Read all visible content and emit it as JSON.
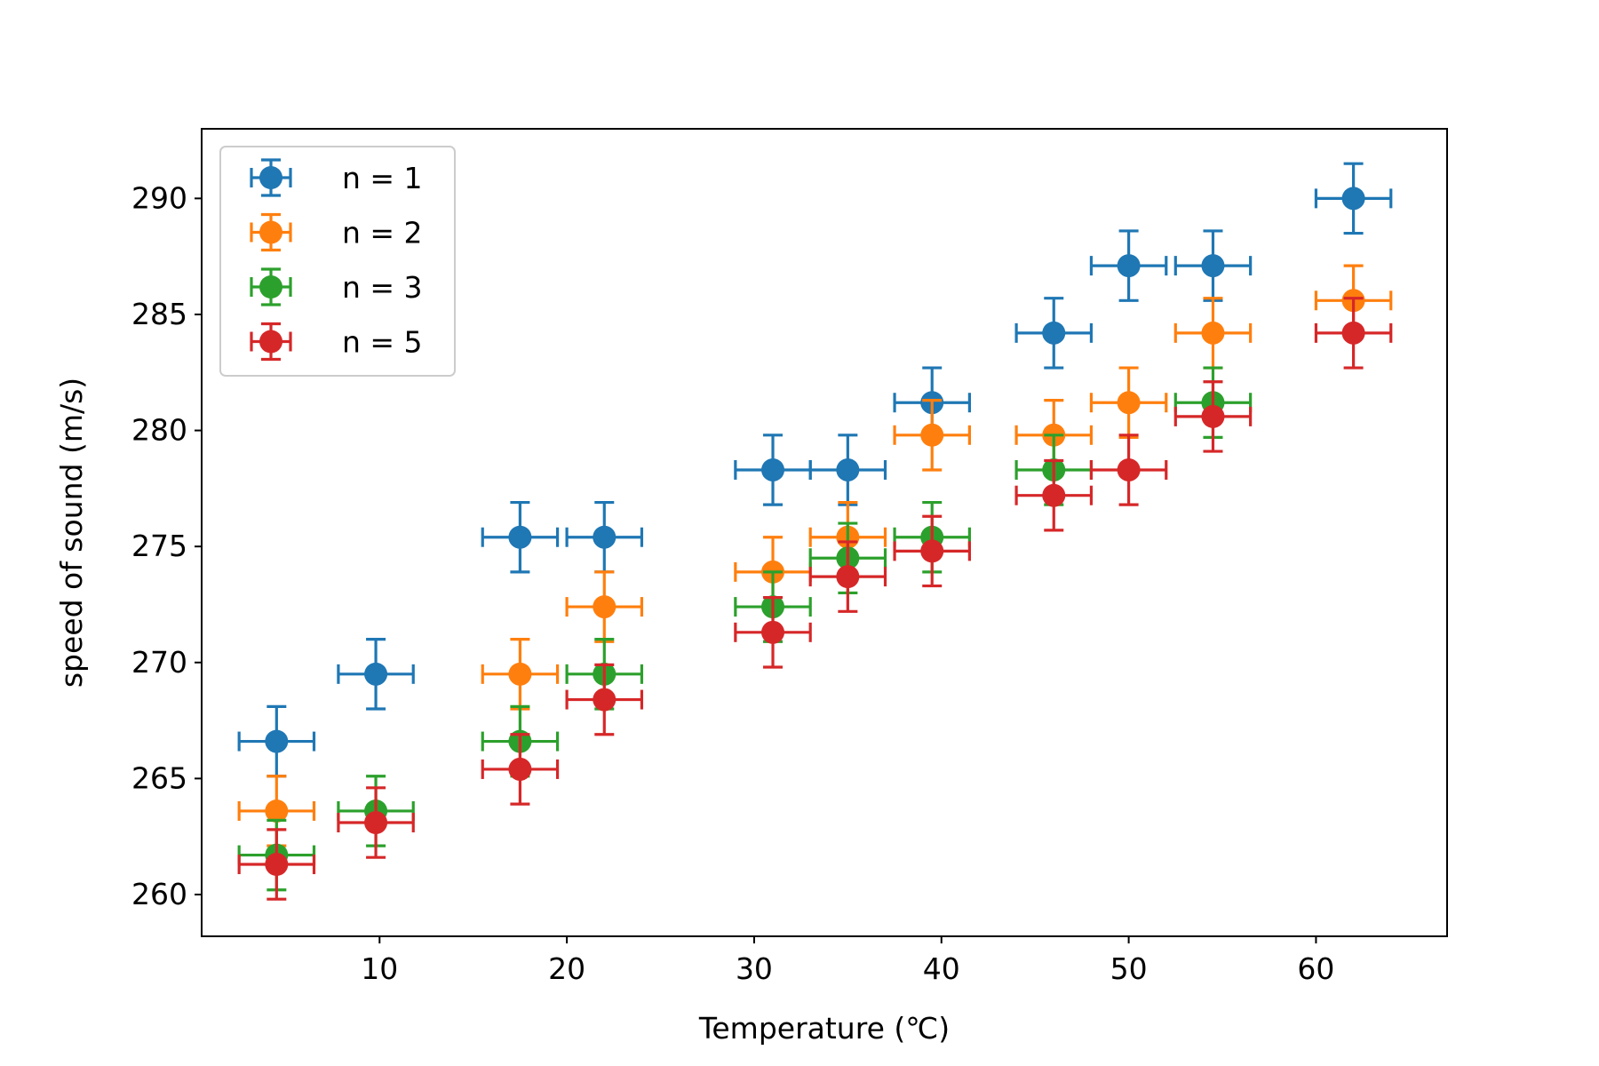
{
  "chart_data": {
    "type": "scatter",
    "title": "",
    "xlabel": "Temperature (℃)",
    "ylabel": "speed of sound (m/s)",
    "xlim": [
      0.5,
      67
    ],
    "ylim": [
      258.2,
      293.0
    ],
    "xticks": [
      10,
      20,
      30,
      40,
      50,
      60
    ],
    "yticks": [
      260,
      265,
      270,
      275,
      280,
      285,
      290
    ],
    "grid": false,
    "legend_position": "upper-left",
    "x_error": 2,
    "y_error": 1.5,
    "series": [
      {
        "name": "n = 1",
        "color": "#1f77b4",
        "points": [
          [
            4.5,
            266.6
          ],
          [
            9.8,
            269.5
          ],
          [
            17.5,
            275.4
          ],
          [
            22,
            275.4
          ],
          [
            31,
            278.3
          ],
          [
            35,
            278.3
          ],
          [
            39.5,
            281.2
          ],
          [
            46,
            284.2
          ],
          [
            50,
            287.1
          ],
          [
            54.5,
            287.1
          ],
          [
            62,
            290.0
          ]
        ]
      },
      {
        "name": "n = 2",
        "color": "#ff7f0e",
        "points": [
          [
            4.5,
            263.6
          ],
          [
            17.5,
            269.5
          ],
          [
            22,
            272.4
          ],
          [
            31,
            273.9
          ],
          [
            35,
            275.4
          ],
          [
            39.5,
            279.8
          ],
          [
            46,
            279.8
          ],
          [
            50,
            281.2
          ],
          [
            54.5,
            284.2
          ],
          [
            62,
            285.6
          ]
        ]
      },
      {
        "name": "n = 3",
        "color": "#2ca02c",
        "points": [
          [
            4.5,
            261.7
          ],
          [
            9.8,
            263.6
          ],
          [
            17.5,
            266.6
          ],
          [
            22,
            269.5
          ],
          [
            31,
            272.4
          ],
          [
            35,
            274.5
          ],
          [
            39.5,
            275.4
          ],
          [
            46,
            278.3
          ],
          [
            54.5,
            281.2
          ]
        ]
      },
      {
        "name": "n = 5",
        "color": "#d62728",
        "points": [
          [
            4.5,
            261.3
          ],
          [
            9.8,
            263.1
          ],
          [
            17.5,
            265.4
          ],
          [
            22,
            268.4
          ],
          [
            31,
            271.3
          ],
          [
            35,
            273.7
          ],
          [
            39.5,
            274.8
          ],
          [
            46,
            277.2
          ],
          [
            50,
            278.3
          ],
          [
            54.5,
            280.6
          ],
          [
            62,
            284.2
          ]
        ]
      }
    ]
  }
}
